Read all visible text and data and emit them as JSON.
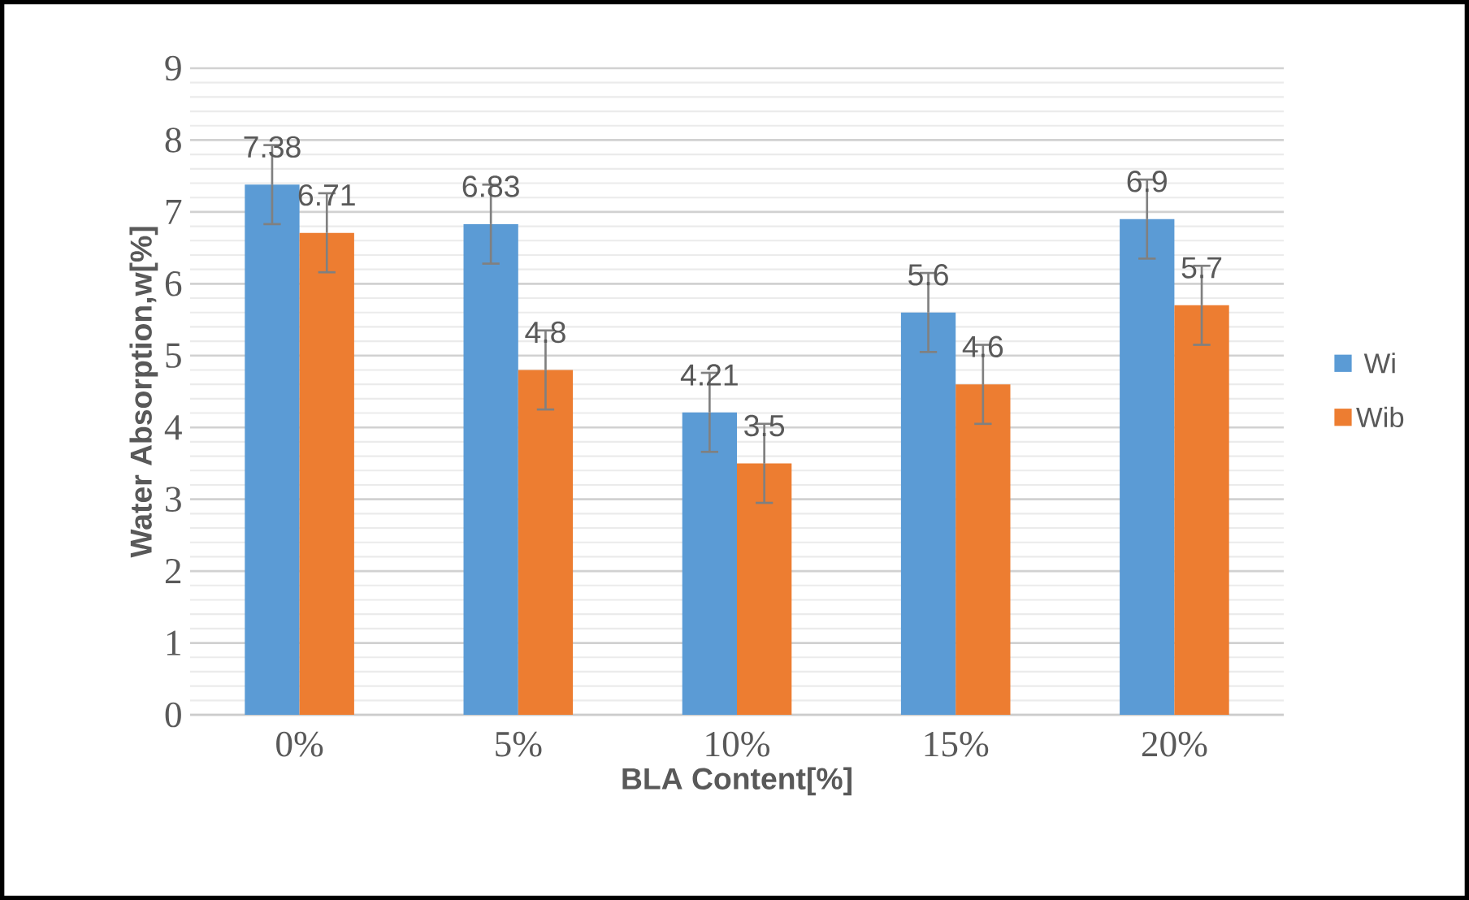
{
  "chart_data": {
    "type": "bar",
    "xlabel": "BLA Content[%]",
    "ylabel": "Water Absorption,w[%]",
    "categories": [
      "0%",
      "5%",
      "10%",
      "15%",
      "20%"
    ],
    "series": [
      {
        "name": "Wi",
        "color": "#5b9bd5",
        "values": [
          7.38,
          6.83,
          4.21,
          5.6,
          6.9
        ],
        "errors": [
          0.55,
          0.55,
          0.55,
          0.55,
          0.55
        ]
      },
      {
        "name": "Wib",
        "color": "#ed7d31",
        "values": [
          6.71,
          4.8,
          3.5,
          4.6,
          5.7
        ],
        "errors": [
          0.55,
          0.55,
          0.55,
          0.55,
          0.55
        ]
      }
    ],
    "ylim": [
      0,
      9
    ],
    "yticks": [
      0,
      1,
      2,
      3,
      4,
      5,
      6,
      7,
      8,
      9
    ],
    "grid": "y",
    "legend": "right",
    "data_labels": true
  }
}
